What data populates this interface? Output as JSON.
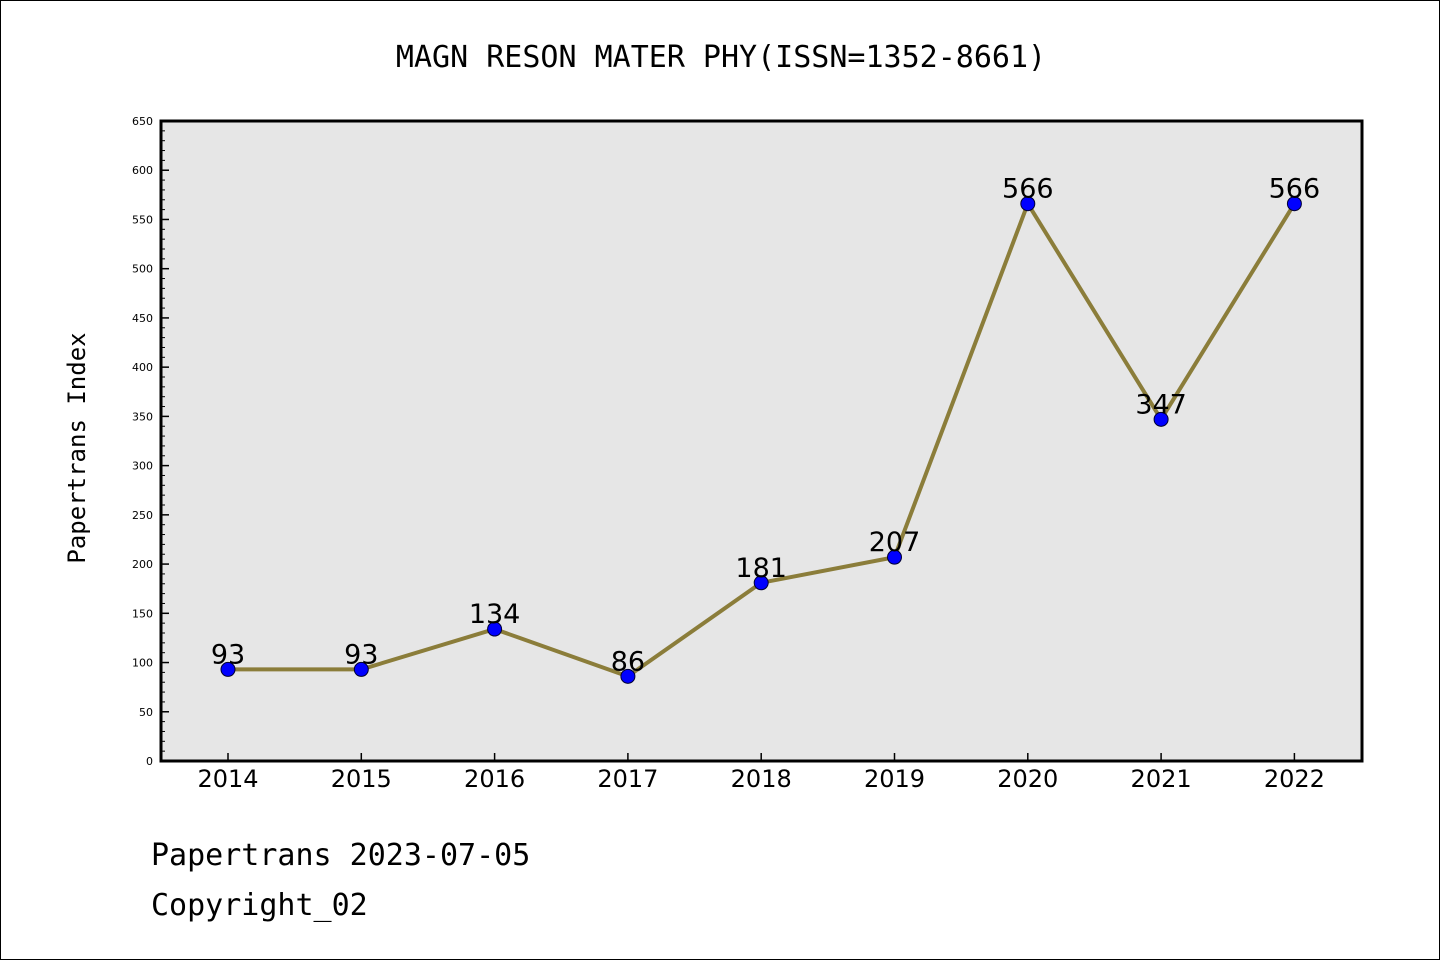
{
  "chart_data": {
    "type": "line",
    "title": "MAGN RESON MATER PHY(ISSN=1352-8661)",
    "xlabel": "",
    "ylabel": "Papertrans Index",
    "categories": [
      "2014",
      "2015",
      "2016",
      "2017",
      "2018",
      "2019",
      "2020",
      "2021",
      "2022"
    ],
    "series": [
      {
        "values": [
          93,
          93,
          134,
          86,
          181,
          207,
          566,
          347,
          566
        ]
      }
    ],
    "ylim": [
      0,
      650
    ],
    "yticks": [
      "0",
      "50",
      "100",
      "150",
      "200",
      "250",
      "300",
      "350",
      "400",
      "450",
      "500",
      "550",
      "600",
      "650"
    ],
    "grid": false,
    "colors": {
      "line": "#8b7d3a",
      "marker": "#0000ff",
      "plot_bg": "#e6e6e6"
    }
  },
  "footer": {
    "line1": "Papertrans 2023-07-05",
    "line2": "Copyright_02"
  }
}
